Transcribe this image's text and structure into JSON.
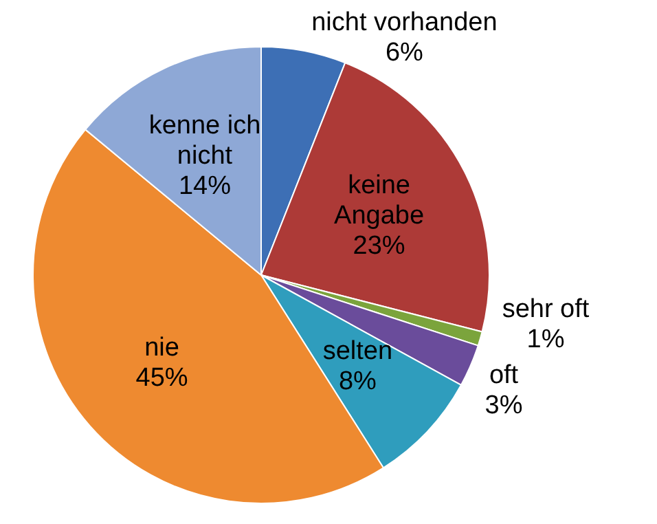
{
  "chart_data": {
    "type": "pie",
    "categories": [
      "nicht vorhanden",
      "keine Angabe",
      "sehr oft",
      "oft",
      "selten",
      "nie",
      "kenne ich nicht"
    ],
    "values": [
      6,
      23,
      1,
      3,
      8,
      45,
      14
    ],
    "colors": [
      "#3d6fb5",
      "#ad3a37",
      "#7ba43c",
      "#6a4c9b",
      "#2f9dbd",
      "#ee8a30",
      "#8ea8d6"
    ],
    "value_labels": [
      "6%",
      "23%",
      "1%",
      "3%",
      "8%",
      "45%",
      "14%"
    ],
    "legend": false
  }
}
